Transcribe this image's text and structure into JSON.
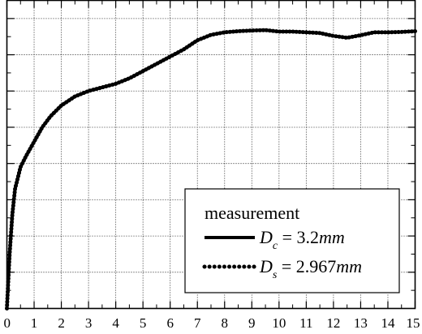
{
  "chart_data": {
    "type": "line",
    "xlim": [
      0,
      15
    ],
    "ylim": [
      0,
      8.5
    ],
    "x_ticks": [
      0,
      1,
      2,
      3,
      4,
      5,
      6,
      7,
      8,
      9,
      10,
      11,
      12,
      13,
      14,
      15
    ],
    "x_tick_labels": [
      "0",
      "1",
      "2",
      "3",
      "4",
      "5",
      "6",
      "7",
      "8",
      "9",
      "10",
      "11",
      "12",
      "13",
      "14",
      "15"
    ],
    "grid": true,
    "legend_placement": "bottom-right",
    "legend": {
      "title": "measurement",
      "entries": [
        {
          "style": "solid",
          "symbol": "D",
          "subscript": "c",
          "rest": " = 3.2",
          "unit": "mm"
        },
        {
          "style": "dotted",
          "symbol": "D",
          "subscript": "s",
          "rest": " = 2.967",
          "unit": "mm"
        }
      ]
    },
    "x": [
      0,
      0.1,
      0.2,
      0.3,
      0.5,
      0.7,
      1,
      1.3,
      1.6,
      2,
      2.5,
      3,
      3.5,
      4,
      4.5,
      5,
      5.5,
      6,
      6.5,
      7,
      7.5,
      8,
      8.5,
      9,
      9.5,
      10,
      10.5,
      11,
      11.5,
      12,
      12.5,
      13,
      13.5,
      14,
      14.5,
      15
    ],
    "series": [
      {
        "values": [
          0,
          1.5,
          2.6,
          3.3,
          3.9,
          4.2,
          4.6,
          5.0,
          5.3,
          5.6,
          5.85,
          6.0,
          6.1,
          6.2,
          6.35,
          6.55,
          6.75,
          6.95,
          7.15,
          7.4,
          7.55,
          7.62,
          7.65,
          7.67,
          7.68,
          7.64,
          7.64,
          7.62,
          7.6,
          7.52,
          7.47,
          7.54,
          7.62,
          7.62,
          7.63,
          7.65
        ]
      },
      {
        "values": [
          0,
          1.5,
          2.6,
          3.3,
          3.9,
          4.2,
          4.6,
          5.0,
          5.3,
          5.6,
          5.85,
          6.0,
          6.1,
          6.2,
          6.35,
          6.55,
          6.75,
          6.95,
          7.15,
          7.4,
          7.55,
          7.62,
          7.65,
          7.67,
          7.68,
          7.64,
          7.64,
          7.62,
          7.6,
          7.52,
          7.47,
          7.54,
          7.62,
          7.62,
          7.63,
          7.65
        ]
      }
    ]
  }
}
